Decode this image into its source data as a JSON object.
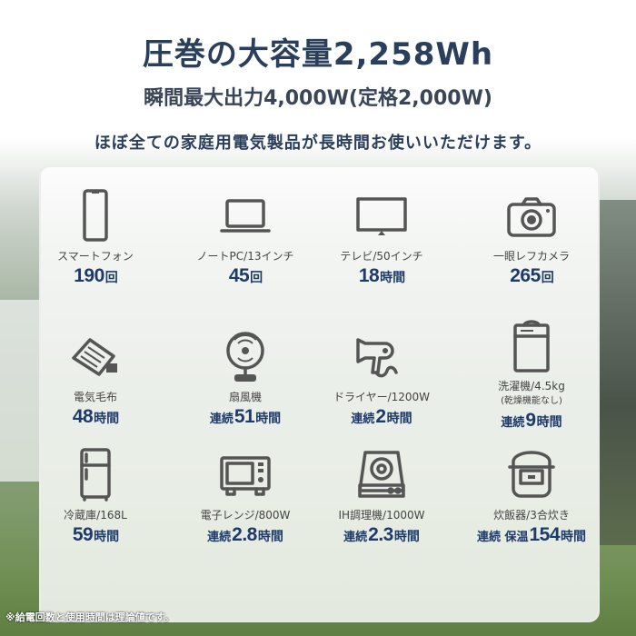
{
  "header": {
    "title": "圧巻の大容量2,258Wh",
    "subtitle": "瞬間最大出力4,000W(定格2,000W)",
    "tagline": "ほぼ全ての家庭用電気製品が長時間お使いいただけます。"
  },
  "colors": {
    "title": "#2a3f5c",
    "value": "#1d3a6b",
    "icon": "#555555"
  },
  "items": [
    {
      "icon": "smartphone-icon",
      "label": "スマートフォン",
      "pre": "",
      "num": "190",
      "unit": "回"
    },
    {
      "icon": "laptop-icon",
      "label": "ノートPC/13インチ",
      "pre": "",
      "num": "45",
      "unit": "回"
    },
    {
      "icon": "tv-icon",
      "label": "テレビ/50インチ",
      "pre": "",
      "num": "18",
      "unit": "時間"
    },
    {
      "icon": "camera-icon",
      "label": "一眼レフカメラ",
      "pre": "",
      "num": "265",
      "unit": "回"
    },
    {
      "icon": "electric-blanket-icon",
      "label": "電気毛布",
      "pre": "",
      "num": "48",
      "unit": "時間"
    },
    {
      "icon": "fan-icon",
      "label": "扇風機",
      "pre": "連続",
      "num": "51",
      "unit": "時間"
    },
    {
      "icon": "hair-dryer-icon",
      "label": "ドライヤー/1200W",
      "pre": "連続",
      "num": "2",
      "unit": "時間"
    },
    {
      "icon": "washing-machine-icon",
      "label": "洗濯機/4.5kg",
      "sub": "(乾燥機能なし)",
      "pre": "連続",
      "num": "9",
      "unit": "時間"
    },
    {
      "icon": "refrigerator-icon",
      "label": "冷蔵庫/168L",
      "pre": "",
      "num": "59",
      "unit": "時間"
    },
    {
      "icon": "microwave-icon",
      "label": "電子レンジ/800W",
      "pre": "連続",
      "num": "2.8",
      "unit": "時間"
    },
    {
      "icon": "ih-cooker-icon",
      "label": "IH調理機/1000W",
      "pre": "連続",
      "num": "2.3",
      "unit": "時間"
    },
    {
      "icon": "rice-cooker-icon",
      "label": "炊飯器/3合炊き",
      "pre": "連続 保温",
      "num": "154",
      "unit": "時間"
    }
  ],
  "footnote": "※給電回数と使用時間は理論値です。"
}
